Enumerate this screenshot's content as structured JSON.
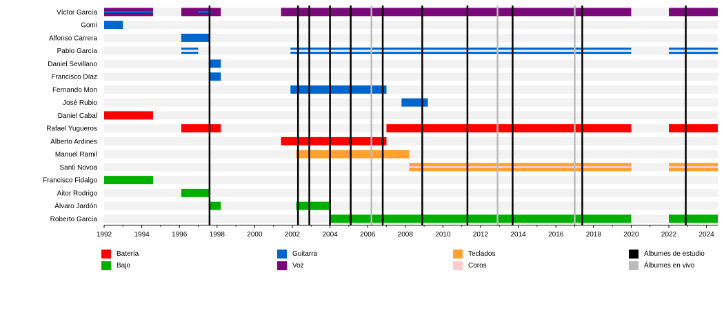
{
  "chart_data": {
    "type": "timeline",
    "x_range": [
      1992,
      2024.6
    ],
    "ticks": [
      1992,
      1994,
      1996,
      1998,
      2000,
      2002,
      2004,
      2006,
      2008,
      2010,
      2012,
      2014,
      2016,
      2018,
      2020,
      2022,
      2024
    ],
    "colors": {
      "bateria": "#ff0000",
      "bajo": "#00b000",
      "guitarra": "#0066cc",
      "voz": "#7a0a7a",
      "teclados": "#ffa030",
      "coros": "#ffcccc",
      "estudio": "#000000",
      "vivo": "#bbbbbb"
    },
    "members": [
      {
        "name": "Víctor García",
        "periods": [
          {
            "role": "voz",
            "start": 1992.0,
            "end": 1994.6
          },
          {
            "role": "guitarra",
            "start": 1992.0,
            "end": 1994.6,
            "thin": true
          },
          {
            "role": "voz",
            "start": 1996.1,
            "end": 1998.2
          },
          {
            "role": "guitarra",
            "start": 1997.0,
            "end": 1997.7,
            "thin": true
          },
          {
            "role": "voz",
            "start": 2001.4,
            "end": 2020.0
          },
          {
            "role": "voz",
            "start": 2022.0,
            "end": 2024.6
          }
        ]
      },
      {
        "name": "Gomi",
        "periods": [
          {
            "role": "guitarra",
            "start": 1992.0,
            "end": 1993.0
          }
        ]
      },
      {
        "name": "Alfonso Carrera",
        "periods": [
          {
            "role": "guitarra",
            "start": 1996.1,
            "end": 1997.6
          }
        ]
      },
      {
        "name": "Pablo García",
        "periods": [
          {
            "role": "guitarra",
            "start": 1996.1,
            "end": 1997.0,
            "thin": true
          },
          {
            "role": "guitarra",
            "start": 2001.9,
            "end": 2020.0,
            "thin": true
          },
          {
            "role": "guitarra",
            "start": 2022.0,
            "end": 2024.6,
            "thin": true
          }
        ]
      },
      {
        "name": "Daniel Sevillano",
        "periods": [
          {
            "role": "guitarra",
            "start": 1997.6,
            "end": 1998.2
          }
        ]
      },
      {
        "name": "Francisco Díaz",
        "periods": [
          {
            "role": "guitarra",
            "start": 1997.6,
            "end": 1998.2
          }
        ]
      },
      {
        "name": "Fernando Mon",
        "periods": [
          {
            "role": "guitarra",
            "start": 2001.9,
            "end": 2007.0
          }
        ]
      },
      {
        "name": "José Rubio",
        "periods": [
          {
            "role": "guitarra",
            "start": 2007.8,
            "end": 2009.2
          }
        ]
      },
      {
        "name": "Daniel Cabal",
        "periods": [
          {
            "role": "bateria",
            "start": 1992.0,
            "end": 1994.6
          }
        ]
      },
      {
        "name": "Rafael Yugueros",
        "periods": [
          {
            "role": "bateria",
            "start": 1996.1,
            "end": 1998.2
          },
          {
            "role": "bateria",
            "start": 2007.0,
            "end": 2020.0
          },
          {
            "role": "bateria",
            "start": 2022.0,
            "end": 2024.6
          }
        ]
      },
      {
        "name": "Alberto Ardines",
        "periods": [
          {
            "role": "bateria",
            "start": 2001.4,
            "end": 2007.0
          }
        ]
      },
      {
        "name": "Manuel Ramil",
        "periods": [
          {
            "role": "teclados",
            "start": 2002.2,
            "end": 2008.2
          }
        ]
      },
      {
        "name": "Santi Novoa",
        "periods": [
          {
            "role": "teclados",
            "start": 2008.2,
            "end": 2020.0,
            "coros": true
          },
          {
            "role": "teclados",
            "start": 2022.0,
            "end": 2024.6,
            "coros": true
          }
        ]
      },
      {
        "name": "Francisco Fidalgo",
        "periods": [
          {
            "role": "bajo",
            "start": 1992.0,
            "end": 1994.6
          }
        ]
      },
      {
        "name": "Aitor Rodrigo",
        "periods": [
          {
            "role": "bajo",
            "start": 1996.1,
            "end": 1997.6
          }
        ]
      },
      {
        "name": "Álvaro Jardón",
        "periods": [
          {
            "role": "bajo",
            "start": 1997.6,
            "end": 1998.2
          },
          {
            "role": "bajo",
            "start": 2002.2,
            "end": 2004.0
          }
        ]
      },
      {
        "name": "Roberto García",
        "periods": [
          {
            "role": "bajo",
            "start": 2004.0,
            "end": 2020.0
          },
          {
            "role": "bajo",
            "start": 2022.0,
            "end": 2024.6
          }
        ]
      }
    ],
    "studio_albums": [
      1997.6,
      2002.3,
      2002.9,
      2004.0,
      2005.1,
      2006.8,
      2008.9,
      2011.3,
      2013.7,
      2017.4,
      2022.9
    ],
    "live_albums": [
      2006.2,
      2012.9,
      2017.0
    ],
    "legend": [
      {
        "label": "Batería",
        "role": "bateria"
      },
      {
        "label": "Bajo",
        "role": "bajo"
      },
      {
        "label": "Guitarra",
        "role": "guitarra"
      },
      {
        "label": "Voz",
        "role": "voz"
      },
      {
        "label": "Teclados",
        "role": "teclados"
      },
      {
        "label": "Coros",
        "role": "coros"
      },
      {
        "label": "Álbumes de estudio",
        "role": "estudio"
      },
      {
        "label": "Álbumes en vivo",
        "role": "vivo"
      }
    ]
  }
}
